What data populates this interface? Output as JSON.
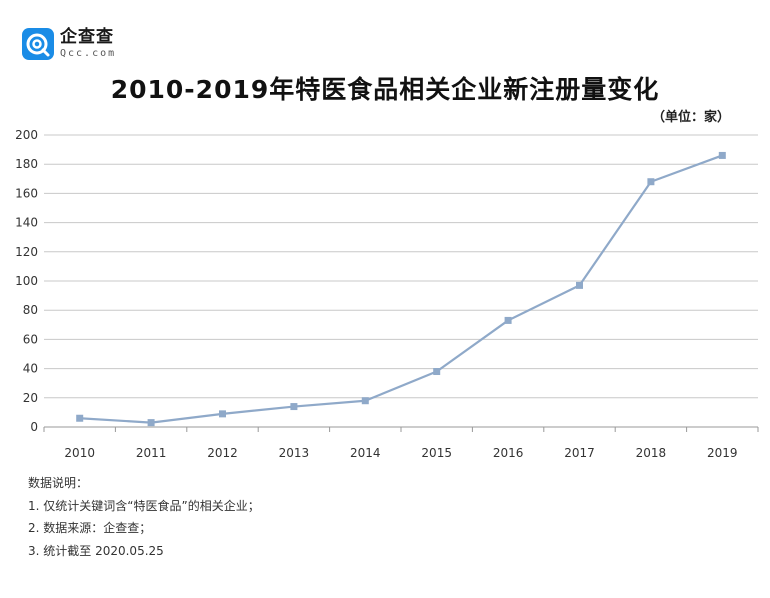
{
  "logo": {
    "name": "企查查",
    "sub": "Qcc.com",
    "icon": "qcc-logo-icon",
    "color": "#1a8ce6"
  },
  "title": "2010-2019年特医食品相关企业新注册量变化",
  "unit": "（单位：家）",
  "notes": {
    "heading": "数据说明：",
    "items": [
      "1. 仅统计关键词含“特医食品”的相关企业；",
      "2. 数据来源：企查查；",
      "3. 统计截至 2020.05.25"
    ]
  },
  "chart_data": {
    "type": "line",
    "title": "2010-2019年特医食品相关企业新注册量变化",
    "xlabel": "",
    "ylabel": "",
    "categories": [
      "2010",
      "2011",
      "2012",
      "2013",
      "2014",
      "2015",
      "2016",
      "2017",
      "2018",
      "2019"
    ],
    "series": [
      {
        "name": "新注册量",
        "values": [
          6,
          3,
          9,
          14,
          18,
          38,
          73,
          97,
          168,
          186
        ],
        "color": "#8fa9c9"
      }
    ],
    "ylim": [
      0,
      200
    ],
    "yticks": [
      0,
      20,
      40,
      60,
      80,
      100,
      120,
      140,
      160,
      180,
      200
    ],
    "grid": true,
    "legend": "none"
  }
}
